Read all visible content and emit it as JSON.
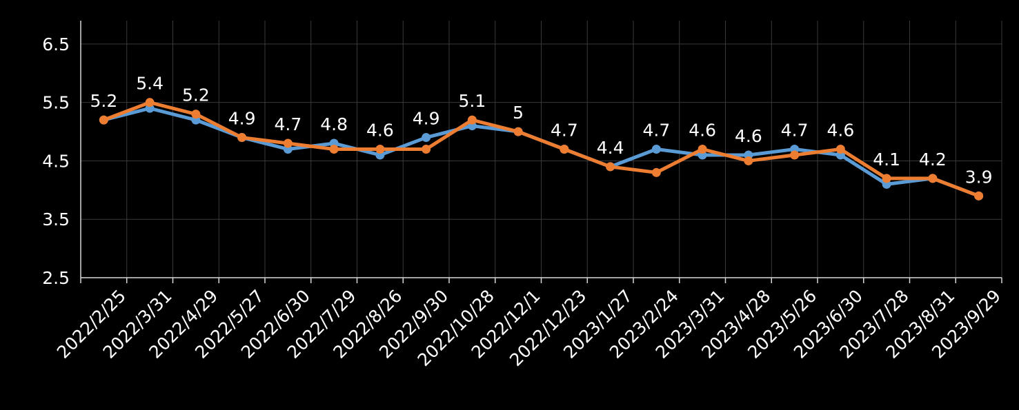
{
  "chart_data": {
    "type": "line",
    "title": "",
    "xlabel": "",
    "ylabel": "",
    "categories": [
      "2022/2/25",
      "2022/3/31",
      "2022/4/29",
      "2022/5/27",
      "2022/6/30",
      "2022/7/29",
      "2022/8/26",
      "2022/9/30",
      "2022/10/28",
      "2022/12/1",
      "2022/12/23",
      "2023/1/27",
      "2023/2/24",
      "2023/3/31",
      "2023/4/28",
      "2023/5/26",
      "2023/6/30",
      "2023/7/28",
      "2023/8/31",
      "2023/9/29"
    ],
    "ylim": [
      2.5,
      6.9
    ],
    "yticks": [
      "2.5",
      "3.5",
      "4.5",
      "5.5",
      "6.5"
    ],
    "grid": true,
    "legend": "none",
    "series": [
      {
        "color": "#5B9BD5",
        "values": [
          5.2,
          5.4,
          5.2,
          4.9,
          4.7,
          4.8,
          4.6,
          4.9,
          5.1,
          5.0,
          4.7,
          4.4,
          4.7,
          4.6,
          4.6,
          4.7,
          4.6,
          4.1,
          4.2,
          3.9
        ]
      },
      {
        "color": "#ED7D31",
        "values": [
          5.2,
          5.5,
          5.3,
          4.9,
          4.8,
          4.7,
          4.7,
          4.7,
          5.2,
          5.0,
          4.7,
          4.4,
          4.3,
          4.7,
          4.5,
          4.6,
          4.7,
          4.2,
          4.2,
          3.9
        ]
      }
    ],
    "data_labels": [
      "5.2",
      "5.4",
      "5.2",
      "4.9",
      "4.7",
      "4.8",
      "4.6",
      "4.9",
      "5.1",
      "5",
      "4.7",
      "4.4",
      "4.7",
      "4.6",
      "4.6",
      "4.7",
      "4.6",
      "4.1",
      "4.2",
      "3.9"
    ],
    "colors": {
      "background": "#000000",
      "grid": "#3A3A3A",
      "axis": "#D9D9D9",
      "text": "#FFFFFF"
    }
  }
}
